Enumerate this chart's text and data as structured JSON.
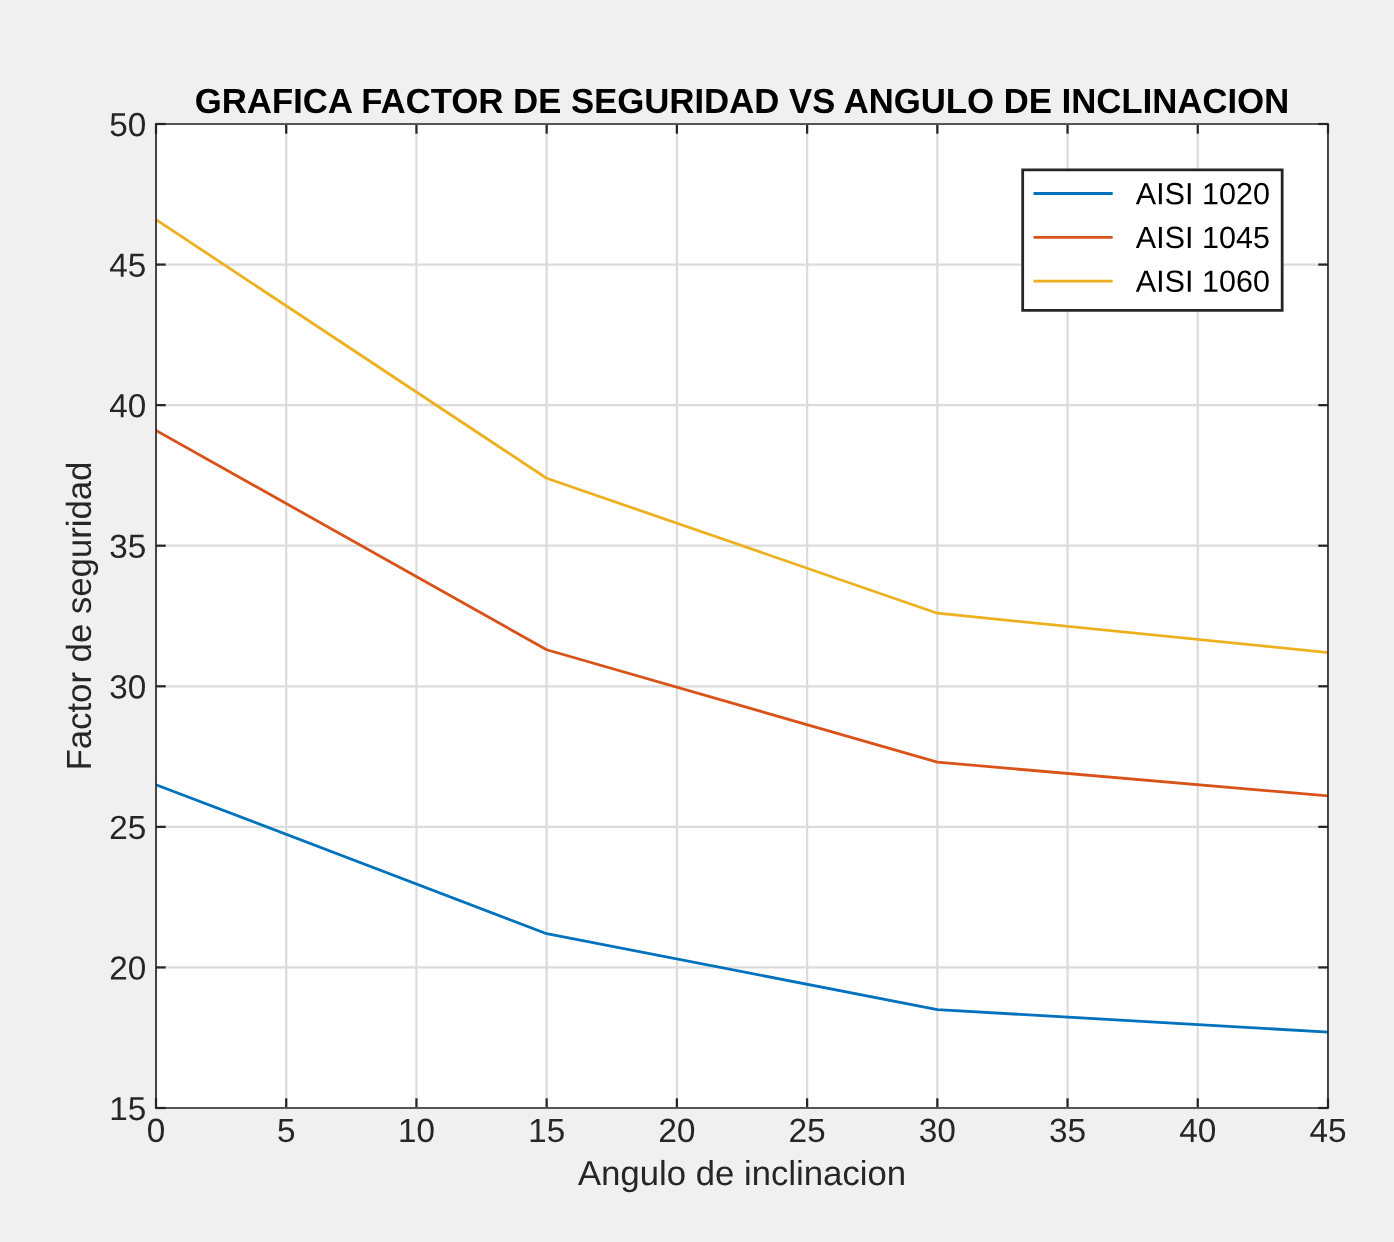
{
  "chart_data": {
    "type": "line",
    "title": "GRAFICA FACTOR DE SEGURIDAD VS ANGULO DE INCLINACION",
    "xlabel": "Angulo de inclinacion",
    "ylabel": "Factor de seguridad",
    "x": [
      0,
      15,
      30,
      45
    ],
    "series": [
      {
        "name": "AISI 1020",
        "color": "#0072bd",
        "values": [
          26.5,
          21.2,
          18.5,
          17.7
        ]
      },
      {
        "name": "AISI 1045",
        "color": "#d95319",
        "values": [
          39.1,
          31.3,
          27.3,
          26.1
        ]
      },
      {
        "name": "AISI 1060",
        "color": "#edb120",
        "values": [
          46.6,
          37.4,
          32.6,
          31.2
        ]
      }
    ],
    "xlim": [
      0,
      45
    ],
    "xticks": [
      0,
      5,
      10,
      15,
      20,
      25,
      30,
      35,
      40,
      45
    ],
    "ylim": [
      15,
      50
    ],
    "yticks": [
      15,
      20,
      25,
      30,
      35,
      40,
      45,
      50
    ],
    "grid": true,
    "legend": "top right"
  }
}
